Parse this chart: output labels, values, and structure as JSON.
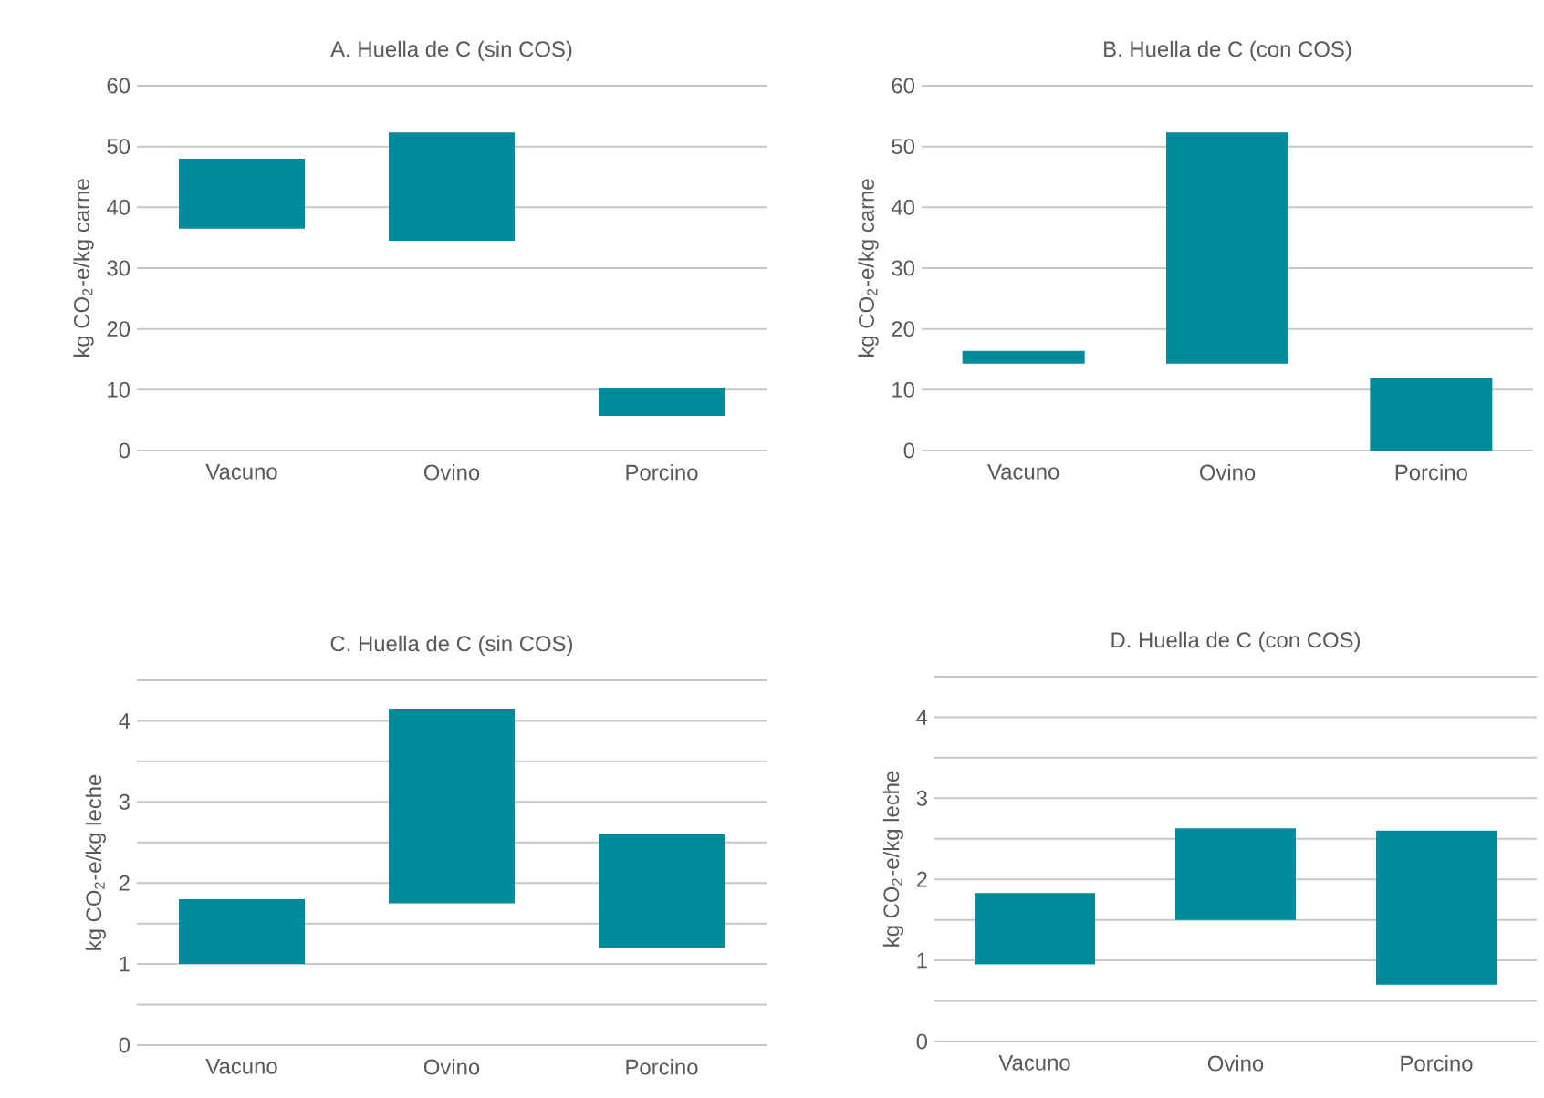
{
  "chart_data": [
    {
      "type": "bar",
      "title": "A. Huella de C (sin COS)",
      "ylabel": "kg CO$_{2}$-e/kg carne",
      "categories": [
        "Vacuno",
        "Ovino",
        "Porcino"
      ],
      "base": [
        36.5,
        34.5,
        5.7
      ],
      "values": [
        11.5,
        17.8,
        4.6
      ],
      "color": "#008b9b",
      "ylim": [
        0,
        60
      ],
      "yticks": [
        0,
        10,
        20,
        30,
        40,
        50,
        60
      ],
      "grid": "y"
    },
    {
      "type": "bar",
      "title": "B. Huella de C (con COS)",
      "ylabel": "kg CO$_{2}$-e/kg carne",
      "categories": [
        "Vacuno",
        "Ovino",
        "Porcino"
      ],
      "base": [
        14.3,
        14.3,
        0
      ],
      "values": [
        2.1,
        38,
        11.9
      ],
      "color": "#008b9b",
      "ylim": [
        0,
        60
      ],
      "yticks": [
        0,
        10,
        20,
        30,
        40,
        50,
        60
      ],
      "grid": "y"
    },
    {
      "type": "bar",
      "title": "C. Huella de C (sin COS)",
      "ylabel": "kg CO$_{2}$-e/kg leche",
      "categories": [
        "Vacuno",
        "Ovino",
        "Porcino"
      ],
      "base": [
        1.0,
        1.75,
        1.2
      ],
      "values": [
        0.8,
        2.4,
        1.4
      ],
      "color": "#008b9b",
      "ylim": [
        0,
        4.5
      ],
      "yticks": [
        0,
        {
          "value": 0.5,
          "label": null
        },
        1,
        {
          "value": 1.5,
          "label": null
        },
        2,
        {
          "value": 2.5,
          "label": null
        },
        3,
        {
          "value": 3.5,
          "label": null
        },
        4,
        {
          "value": 4.5,
          "label": null
        }
      ],
      "grid": "y"
    },
    {
      "type": "bar",
      "title": "D. Huella de C (con COS)",
      "ylabel": "kg CO$_{2}$-e/kg leche",
      "categories": [
        "Vacuno",
        "Ovino",
        "Porcino"
      ],
      "base": [
        0.95,
        1.5,
        0.7
      ],
      "values": [
        0.88,
        1.13,
        1.9
      ],
      "color": "#008b9b",
      "ylim": [
        0,
        4.5
      ],
      "yticks": [
        0,
        {
          "value": 0.5,
          "label": null
        },
        1,
        {
          "value": 1.5,
          "label": null
        },
        2,
        {
          "value": 2.5,
          "label": null
        },
        3,
        {
          "value": 3.5,
          "label": null
        },
        4,
        {
          "value": 4.5,
          "label": null
        }
      ],
      "grid": "y"
    }
  ]
}
